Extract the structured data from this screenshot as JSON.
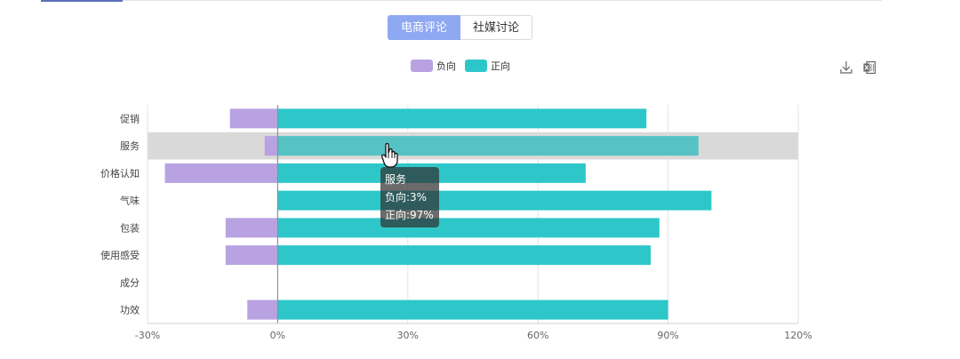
{
  "tabs": [
    {
      "label": "电商评论",
      "active": true
    },
    {
      "label": "社媒讨论",
      "active": false
    }
  ],
  "toolbar": {
    "icons": [
      "download-icon",
      "excel-export-icon"
    ]
  },
  "colors": {
    "negative": "#b8a2e2",
    "positive": "#2ec7c9",
    "highlight": "#d9d9d9",
    "tab_active": "#8fa8f2"
  },
  "chart_data": {
    "type": "bar",
    "orientation": "horizontal",
    "stacked": true,
    "categories": [
      "促销",
      "服务",
      "价格认知",
      "气味",
      "包装",
      "使用感受",
      "成分",
      "功效"
    ],
    "series": [
      {
        "name": "负向",
        "values": [
          -11,
          -3,
          -26,
          0,
          -12,
          -12,
          0,
          -7
        ]
      },
      {
        "name": "正向",
        "values": [
          85,
          97,
          71,
          100,
          88,
          86,
          0,
          90
        ]
      }
    ],
    "xlim": [
      -30,
      120
    ],
    "xticks": [
      "-30%",
      "0%",
      "30%",
      "60%",
      "90%",
      "120%"
    ],
    "grid": true,
    "legend_position": "top-center",
    "highlighted_category": "服务",
    "tooltip": {
      "title": "服务",
      "lines": [
        "负向:3%",
        "正向:97%"
      ]
    }
  }
}
